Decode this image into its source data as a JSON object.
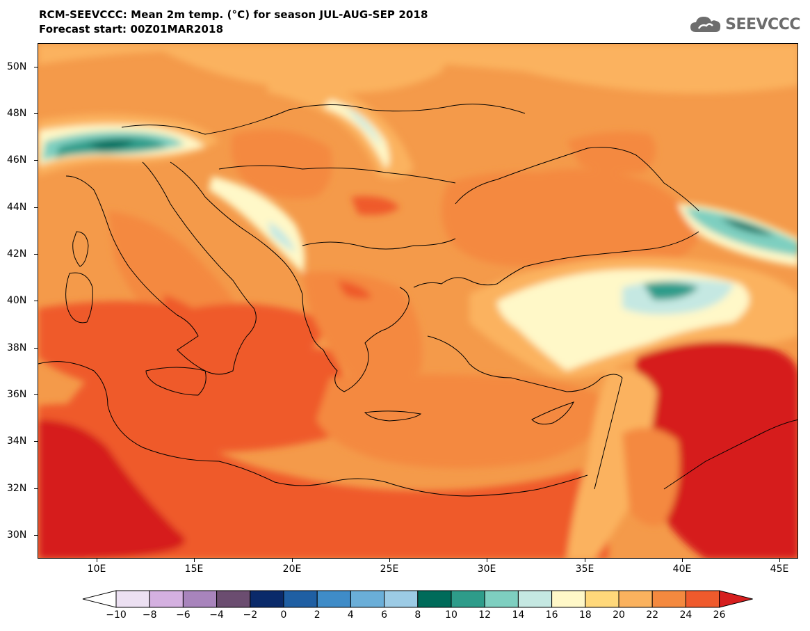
{
  "header": {
    "title_line1": "RCM-SEEVCCC: Mean 2m temp. (°C) for season JUL-AUG-SEP 2018",
    "title_line2": "Forecast start: 00Z01MAR2018"
  },
  "logo": {
    "text": "SEEVCCC",
    "icon": "cloud-icon"
  },
  "map": {
    "latitude_labels": [
      "50N",
      "48N",
      "46N",
      "44N",
      "42N",
      "40N",
      "38N",
      "36N",
      "34N",
      "32N",
      "30N"
    ],
    "longitude_labels": [
      "10E",
      "15E",
      "20E",
      "25E",
      "30E",
      "35E",
      "40E",
      "45E"
    ],
    "lat_range": [
      29,
      51
    ],
    "lon_range": [
      7,
      46
    ]
  },
  "colorbar": {
    "labels": [
      "−10",
      "−8",
      "−6",
      "−4",
      "−2",
      "0",
      "2",
      "4",
      "6",
      "8",
      "10",
      "12",
      "14",
      "16",
      "18",
      "20",
      "22",
      "24",
      "26"
    ],
    "colors": [
      "#ffffff",
      "#ece0f2",
      "#d4b0e0",
      "#a884bc",
      "#6b4d70",
      "#0a2a6a",
      "#1f5fa3",
      "#3f8cc8",
      "#6aaed8",
      "#9ccbe5",
      "#006b5a",
      "#2e9c8a",
      "#7ecfc0",
      "#c5e8e2",
      "#fff8c8",
      "#ffd87a",
      "#fbb25e",
      "#f4893f",
      "#ef5a2c",
      "#d61e1e"
    ]
  }
}
